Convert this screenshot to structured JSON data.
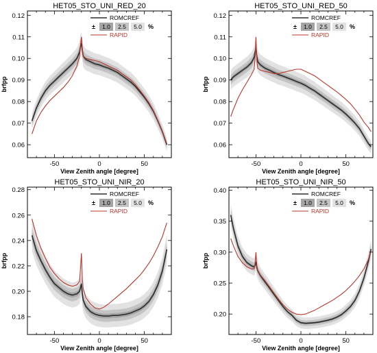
{
  "colors": {
    "band_5": "#e2e2e2",
    "band_2_5": "#c4c4c4",
    "band_1": "#a4a4a4",
    "romcref": "#2c2c2c",
    "rapid": "#b8352a"
  },
  "chart_data": [
    {
      "type": "line",
      "title": "HET05_STO_UNI_RED_20",
      "xlabel": "View Zenith angle [degree]",
      "ylabel": "brfpp",
      "xlim": [
        -80,
        80
      ],
      "ylim": [
        0.054,
        0.122
      ],
      "xticks": [
        -50,
        0,
        50
      ],
      "yticks": [
        0.06,
        0.07,
        0.08,
        0.09,
        0.1,
        0.11,
        0.12
      ],
      "ytick_labels": [
        "0.06",
        "0.07",
        "0.08",
        "0.09",
        "0.10",
        "0.11",
        "0.12"
      ],
      "grid": false,
      "legend_position": "top-right",
      "legend": {
        "line1": "ROMCREF",
        "pm": "±",
        "b1": "1.0",
        "b2": "2.5",
        "b3": "5.0",
        "unit": "%",
        "line2": "RAPID"
      },
      "x": [
        -75,
        -70,
        -65,
        -60,
        -55,
        -50,
        -45,
        -40,
        -35,
        -30,
        -25,
        -22,
        -21,
        -20,
        -19,
        -18,
        -15,
        -10,
        -5,
        0,
        5,
        10,
        15,
        20,
        25,
        30,
        35,
        40,
        45,
        50,
        55,
        60,
        65,
        70,
        75
      ],
      "series": [
        {
          "name": "ROMCREF",
          "values": [
            0.071,
            0.077,
            0.0815,
            0.085,
            0.0875,
            0.0895,
            0.0915,
            0.0935,
            0.0955,
            0.0975,
            0.1,
            0.103,
            0.1055,
            0.107,
            0.104,
            0.101,
            0.0995,
            0.0985,
            0.0975,
            0.097,
            0.0962,
            0.0955,
            0.0945,
            0.0935,
            0.092,
            0.0905,
            0.089,
            0.087,
            0.0845,
            0.082,
            0.079,
            0.0755,
            0.071,
            0.066,
            0.06
          ]
        },
        {
          "name": "RAPID",
          "values": [
            0.065,
            0.071,
            0.075,
            0.078,
            0.0805,
            0.0825,
            0.0845,
            0.0865,
            0.089,
            0.092,
            0.0965,
            0.101,
            0.106,
            0.11,
            0.1045,
            0.101,
            0.1,
            0.0995,
            0.099,
            0.0985,
            0.0975,
            0.0965,
            0.0955,
            0.0945,
            0.093,
            0.0915,
            0.09,
            0.0878,
            0.0852,
            0.0825,
            0.0795,
            0.0758,
            0.0712,
            0.066,
            0.0605
          ]
        }
      ]
    },
    {
      "type": "line",
      "title": "HET05_STO_UNI_RED_50",
      "xlabel": "View Zenith angle [degree]",
      "ylabel": "brfpp",
      "xlim": [
        -80,
        80
      ],
      "ylim": [
        0.054,
        0.122
      ],
      "xticks": [
        -50,
        0,
        50
      ],
      "yticks": [
        0.06,
        0.07,
        0.08,
        0.09,
        0.1,
        0.11,
        0.12
      ],
      "ytick_labels": [
        "0.06",
        "0.07",
        "0.08",
        "0.09",
        "0.10",
        "0.11",
        "0.12"
      ],
      "grid": false,
      "legend_position": "top-right",
      "legend": {
        "line1": "ROMCREF",
        "pm": "±",
        "b1": "1.0",
        "b2": "2.5",
        "b3": "5.0",
        "unit": "%",
        "line2": "RAPID"
      },
      "x": [
        -78,
        -75,
        -70,
        -65,
        -60,
        -55,
        -52,
        -51,
        -50,
        -49,
        -48,
        -45,
        -40,
        -35,
        -30,
        -25,
        -20,
        -15,
        -10,
        -5,
        0,
        5,
        10,
        15,
        20,
        25,
        30,
        35,
        40,
        45,
        50,
        55,
        60,
        65,
        70,
        75,
        78
      ],
      "series": [
        {
          "name": "ROMCREF",
          "values": [
            0.09,
            0.0915,
            0.093,
            0.0945,
            0.096,
            0.098,
            0.1005,
            0.103,
            0.1045,
            0.101,
            0.0985,
            0.097,
            0.0955,
            0.0945,
            0.0935,
            0.0925,
            0.0918,
            0.091,
            0.0902,
            0.0893,
            0.0885,
            0.0875,
            0.0862,
            0.085,
            0.0835,
            0.082,
            0.0805,
            0.079,
            0.0775,
            0.076,
            0.0742,
            0.0722,
            0.07,
            0.0675,
            0.064,
            0.0605,
            0.059
          ]
        },
        {
          "name": "RAPID",
          "values": [
            0.073,
            0.0765,
            0.0815,
            0.0855,
            0.089,
            0.0925,
            0.095,
            0.1,
            0.11,
            0.099,
            0.0955,
            0.0945,
            0.094,
            0.0935,
            0.093,
            0.093,
            0.0935,
            0.094,
            0.0945,
            0.095,
            0.095,
            0.094,
            0.093,
            0.092,
            0.0905,
            0.089,
            0.0875,
            0.086,
            0.0845,
            0.0828,
            0.081,
            0.079,
            0.0765,
            0.0738,
            0.0705,
            0.068,
            0.066
          ]
        }
      ]
    },
    {
      "type": "line",
      "title": "HET05_STO_UNI_NIR_20",
      "xlabel": "View Zenith angle [degree]",
      "ylabel": "brfpp",
      "xlim": [
        -80,
        80
      ],
      "ylim": [
        0.166,
        0.282
      ],
      "xticks": [
        -50,
        0,
        50
      ],
      "yticks": [
        0.18,
        0.2,
        0.22,
        0.24,
        0.26,
        0.28
      ],
      "ytick_labels": [
        "0.18",
        "0.20",
        "0.22",
        "0.24",
        "0.26",
        "0.28"
      ],
      "grid": false,
      "legend_position": "top-right",
      "legend": {
        "line1": "ROMCREF",
        "pm": "±",
        "b1": "1.0",
        "b2": "2.5",
        "b3": "5.0",
        "unit": "%",
        "line2": "RAPID"
      },
      "x": [
        -75,
        -70,
        -65,
        -60,
        -55,
        -50,
        -45,
        -40,
        -35,
        -30,
        -25,
        -22,
        -21,
        -20,
        -19,
        -18,
        -15,
        -10,
        -5,
        0,
        5,
        10,
        15,
        20,
        25,
        30,
        35,
        40,
        45,
        50,
        55,
        60,
        65,
        70,
        75
      ],
      "series": [
        {
          "name": "ROMCREF",
          "values": [
            0.244,
            0.232,
            0.224,
            0.217,
            0.211,
            0.206,
            0.203,
            0.2,
            0.198,
            0.197,
            0.198,
            0.2,
            0.203,
            0.206,
            0.198,
            0.193,
            0.188,
            0.184,
            0.182,
            0.181,
            0.1805,
            0.1805,
            0.181,
            0.181,
            0.1815,
            0.182,
            0.183,
            0.1845,
            0.186,
            0.1885,
            0.192,
            0.1975,
            0.205,
            0.216,
            0.233
          ]
        },
        {
          "name": "RAPID",
          "values": [
            0.257,
            0.244,
            0.234,
            0.226,
            0.219,
            0.214,
            0.21,
            0.207,
            0.205,
            0.204,
            0.205,
            0.208,
            0.218,
            0.23,
            0.21,
            0.202,
            0.195,
            0.19,
            0.187,
            0.186,
            0.1875,
            0.19,
            0.193,
            0.196,
            0.199,
            0.202,
            0.2055,
            0.209,
            0.2125,
            0.217,
            0.222,
            0.228,
            0.235,
            0.243,
            0.254
          ]
        }
      ]
    },
    {
      "type": "line",
      "title": "HET05_STO_UNI_NIR_50",
      "xlabel": "View Zenith angle [degree]",
      "ylabel": "brfpp",
      "xlim": [
        -80,
        80
      ],
      "ylim": [
        0.167,
        0.405
      ],
      "xticks": [
        -50,
        0,
        50
      ],
      "yticks": [
        0.2,
        0.25,
        0.3,
        0.35,
        0.4
      ],
      "ytick_labels": [
        "0.20",
        "0.25",
        "0.30",
        "0.35",
        "0.40"
      ],
      "grid": false,
      "legend_position": "top-right",
      "legend": {
        "line1": "ROMCREF",
        "pm": "±",
        "b1": "1.0",
        "b2": "2.5",
        "b3": "5.0",
        "unit": "%",
        "line2": "RAPID"
      },
      "x": [
        -78,
        -75,
        -70,
        -65,
        -60,
        -55,
        -52,
        -51,
        -50,
        -49,
        -48,
        -45,
        -40,
        -35,
        -30,
        -25,
        -20,
        -15,
        -10,
        -5,
        0,
        5,
        10,
        15,
        20,
        25,
        30,
        35,
        40,
        45,
        50,
        55,
        60,
        65,
        70,
        75,
        78
      ],
      "series": [
        {
          "name": "ROMCREF",
          "values": [
            0.36,
            0.338,
            0.31,
            0.293,
            0.283,
            0.278,
            0.276,
            0.279,
            0.284,
            0.275,
            0.27,
            0.262,
            0.252,
            0.242,
            0.232,
            0.222,
            0.212,
            0.204,
            0.198,
            0.19,
            0.186,
            0.185,
            0.1855,
            0.186,
            0.187,
            0.1885,
            0.19,
            0.192,
            0.195,
            0.199,
            0.205,
            0.212,
            0.222,
            0.237,
            0.258,
            0.285,
            0.305
          ]
        },
        {
          "name": "RAPID",
          "values": [
            0.322,
            0.31,
            0.293,
            0.283,
            0.276,
            0.273,
            0.273,
            0.281,
            0.3,
            0.278,
            0.271,
            0.263,
            0.254,
            0.244,
            0.234,
            0.224,
            0.215,
            0.208,
            0.203,
            0.2,
            0.199,
            0.2,
            0.203,
            0.206,
            0.21,
            0.214,
            0.218,
            0.222,
            0.227,
            0.232,
            0.238,
            0.245,
            0.253,
            0.262,
            0.273,
            0.288,
            0.302
          ]
        }
      ]
    }
  ]
}
